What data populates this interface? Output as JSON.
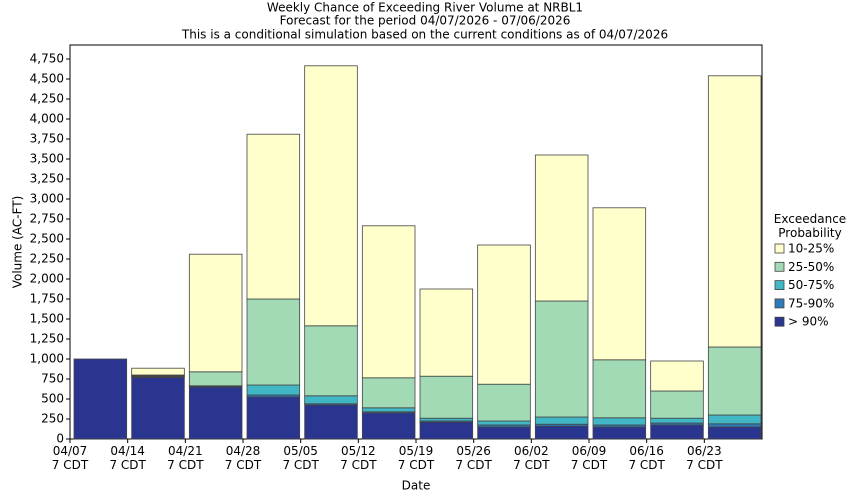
{
  "chart_data": {
    "type": "stacked_bar",
    "title": "Weekly Chance of Exceeding River Volume at NRBL1",
    "subtitle": "Forecast for the period 04/07/2026 - 07/06/2026",
    "subtitle2": "This is a conditional simulation based on the current conditions as of 04/07/2026",
    "x_label": "Date",
    "y_label": "Volume (AC-FT)",
    "legend_title": "Exceedance Probability",
    "legend_position": "right",
    "categories": [
      "04/07\n7 CDT",
      "04/14\n7 CDT",
      "04/21\n7 CDT",
      "04/28\n7 CDT",
      "05/05\n7 CDT",
      "05/12\n7 CDT",
      "05/19\n7 CDT",
      "05/26\n7 CDT",
      "06/02\n7 CDT",
      "06/09\n7 CDT",
      "06/16\n7 CDT",
      "06/23\n7 CDT"
    ],
    "series": [
      {
        "name": "> 90%",
        "color": "#2a3590",
        "values": [
          1000,
          770,
          650,
          525,
          425,
          325,
          210,
          150,
          160,
          150,
          175,
          150
        ]
      },
      {
        "name": "75-90%",
        "color": "#2f7bb7",
        "values": [
          0,
          10,
          10,
          25,
          15,
          15,
          15,
          25,
          25,
          25,
          25,
          40
        ]
      },
      {
        "name": "50-75%",
        "color": "#41b6c4",
        "values": [
          0,
          10,
          5,
          125,
          100,
          50,
          35,
          50,
          90,
          90,
          60,
          110
        ]
      },
      {
        "name": "25-50%",
        "color": "#a1dab4",
        "values": [
          0,
          10,
          175,
          1075,
          875,
          375,
          525,
          460,
          1450,
          725,
          340,
          850
        ]
      },
      {
        "name": "10-25%",
        "color": "#ffffcc",
        "values": [
          0,
          85,
          1470,
          2060,
          3250,
          1900,
          1090,
          1740,
          1825,
          1900,
          375,
          3390
        ]
      }
    ],
    "ylim": [
      0,
      4925
    ],
    "yticks": [
      0,
      250,
      500,
      750,
      {
        "value": 1000,
        "label": "1,000"
      },
      {
        "value": 1250,
        "label": "1,250"
      },
      {
        "value": 1500,
        "label": "1,500"
      },
      {
        "value": 1750,
        "label": "1,750"
      },
      {
        "value": 2000,
        "label": "2,000"
      },
      {
        "value": 2250,
        "label": "2,250"
      },
      {
        "value": 2500,
        "label": "2,500"
      },
      {
        "value": 2750,
        "label": "2,750"
      },
      {
        "value": 3000,
        "label": "3,000"
      },
      {
        "value": 3250,
        "label": "3,250"
      },
      {
        "value": 3500,
        "label": "3,500"
      },
      {
        "value": 3750,
        "label": "3,750"
      },
      {
        "value": 4000,
        "label": "4,000"
      },
      {
        "value": 4250,
        "label": "4,250"
      },
      {
        "value": 4500,
        "label": "4,500"
      },
      {
        "value": 4750,
        "label": "4,750"
      }
    ],
    "grid": false
  }
}
